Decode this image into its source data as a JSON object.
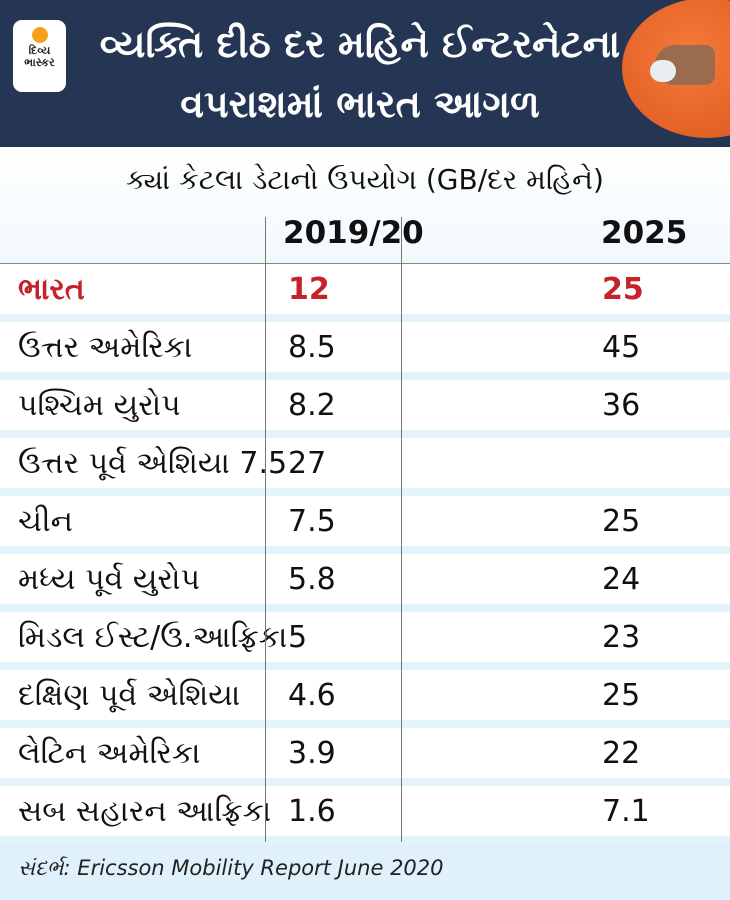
{
  "header": {
    "logo_text": [
      "દિવ્ય",
      "ભાસ્કર"
    ],
    "title_line1": "વ્યક્તિ દીઠ દર મહિને ઈન્ટરનેટના",
    "title_line2": "વપરાશમાં ભારત આગળ"
  },
  "chart_data": {
    "type": "table",
    "title": "ક્યાં કેટલા ડેટાનો ઉપયોગ (GB/દર મહિને)",
    "columns": [
      "",
      "2019/20",
      "2025"
    ],
    "rows": [
      [
        "ભારત",
        "12",
        "25"
      ],
      [
        "ઉત્તર અમેરિકા",
        "8.5",
        "45"
      ],
      [
        "પશ્ચિમ યુરોપ",
        "8.2",
        "36"
      ],
      [
        "ઉત્તર પૂર્વ એશિયા 7.5",
        "27",
        ""
      ],
      [
        "ચીન",
        "7.5",
        "25"
      ],
      [
        "મધ્ય પૂર્વ યુરોપ",
        "5.8",
        "24"
      ],
      [
        "મિડલ ઈસ્ટ/ઉ.આફ્રિકા",
        "5",
        "23"
      ],
      [
        "દક્ષિણ પૂર્વ એશિયા",
        "4.6",
        "25"
      ],
      [
        "લેટિન અમેરિકા",
        "3.9",
        "22"
      ],
      [
        "સબ સહારન આફ્રિકા",
        "1.6",
        "7.1"
      ]
    ],
    "highlight_row": 0,
    "highlight_color": "#c4232a"
  },
  "footer": {
    "source": "સંદર્ભ: Ericsson Mobility Report June 2020"
  }
}
